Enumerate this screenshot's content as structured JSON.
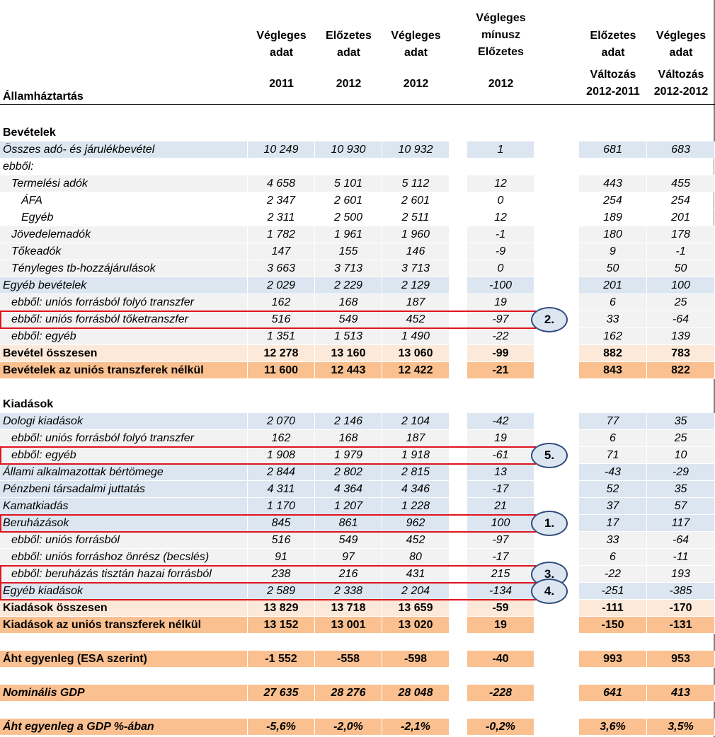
{
  "header": {
    "title": "Államháztartás",
    "cols": [
      {
        "l1": "Végleges",
        "l2": "adat",
        "l3": "",
        "year": "2011"
      },
      {
        "l1": "Előzetes",
        "l2": "adat",
        "l3": "",
        "year": "2012"
      },
      {
        "l1": "Végleges",
        "l2": "adat",
        "l3": "",
        "year": "2012"
      },
      {
        "l1": "Végleges",
        "l2": "mínusz",
        "l3": "Előzetes",
        "year": "2012"
      },
      {
        "l1": "Előzetes",
        "l2": "adat",
        "l3": "Változás",
        "year": "2012-2011"
      },
      {
        "l1": "Végleges",
        "l2": "adat",
        "l3": "Változás",
        "year": "2012-2012"
      }
    ]
  },
  "rows": [
    {
      "label": "Bevételek",
      "style": "sec",
      "v": []
    },
    {
      "label": "Összes adó- és járulékbevétel",
      "style": "blue it",
      "v": [
        "10 249",
        "10 930",
        "10 932",
        "1",
        "681",
        "683"
      ]
    },
    {
      "label": "ebből:",
      "style": "white it",
      "v": [
        "",
        "",
        "",
        "",
        "",
        ""
      ]
    },
    {
      "label": "Termelési adók",
      "style": "gray it ind1",
      "v": [
        "4 658",
        "5 101",
        "5 112",
        "12",
        "443",
        "455"
      ]
    },
    {
      "label": "ÁFA",
      "style": "white ind2",
      "v": [
        "2 347",
        "2 601",
        "2 601",
        "0",
        "254",
        "254"
      ]
    },
    {
      "label": "Egyéb",
      "style": "white ind2",
      "v": [
        "2 311",
        "2 500",
        "2 511",
        "12",
        "189",
        "201"
      ]
    },
    {
      "label": "Jövedelemadók",
      "style": "gray it ind1",
      "v": [
        "1 782",
        "1 961",
        "1 960",
        "-1",
        "180",
        "178"
      ]
    },
    {
      "label": "Tőkeadók",
      "style": "gray it ind1",
      "v": [
        "147",
        "155",
        "146",
        "-9",
        "9",
        "-1"
      ]
    },
    {
      "label": "Tényleges tb-hozzájárulások",
      "style": "gray it ind1",
      "v": [
        "3 663",
        "3 713",
        "3 713",
        "0",
        "50",
        "50"
      ]
    },
    {
      "label": "Egyéb bevételek",
      "style": "blue it",
      "v": [
        "2 029",
        "2 229",
        "2 129",
        "-100",
        "201",
        "100"
      ]
    },
    {
      "label": "ebből: uniós forrásból folyó transzfer",
      "style": "gray it ind1",
      "v": [
        "162",
        "168",
        "187",
        "19",
        "6",
        "25"
      ]
    },
    {
      "label": "ebből: uniós forrásból tőketranszfer",
      "style": "gray it ind1",
      "v": [
        "516",
        "549",
        "452",
        "-97",
        "33",
        "-64"
      ]
    },
    {
      "label": "ebből: egyéb",
      "style": "gray it ind1",
      "v": [
        "1 351",
        "1 513",
        "1 490",
        "-22",
        "162",
        "139"
      ]
    },
    {
      "label": "Bevétel összesen",
      "style": "pink bd",
      "v": [
        "12 278",
        "13 160",
        "13 060",
        "-99",
        "882",
        "783"
      ]
    },
    {
      "label": "Bevételek az uniós transzferek nélkül",
      "style": "orange bd",
      "v": [
        "11 600",
        "12 443",
        "12 422",
        "-21",
        "843",
        "822"
      ]
    },
    {
      "label": "",
      "style": "white",
      "v": []
    },
    {
      "label": "Kiadások",
      "style": "sec",
      "v": []
    },
    {
      "label": "Dologi kiadások",
      "style": "blue it",
      "v": [
        "2 070",
        "2 146",
        "2 104",
        "-42",
        "77",
        "35"
      ]
    },
    {
      "label": "ebből: uniós forrásból folyó transzfer",
      "style": "gray it ind1",
      "v": [
        "162",
        "168",
        "187",
        "19",
        "6",
        "25"
      ]
    },
    {
      "label": "ebből: egyéb",
      "style": "gray it ind1",
      "v": [
        "1 908",
        "1 979",
        "1 918",
        "-61",
        "71",
        "10"
      ]
    },
    {
      "label": "Állami alkalmazottak bértömege",
      "style": "blue it",
      "v": [
        "2 844",
        "2 802",
        "2 815",
        "13",
        "-43",
        "-29"
      ]
    },
    {
      "label": "Pénzbeni társadalmi juttatás",
      "style": "blue it",
      "v": [
        "4 311",
        "4 364",
        "4 346",
        "-17",
        "52",
        "35"
      ]
    },
    {
      "label": "Kamatkiadás",
      "style": "blue it",
      "v": [
        "1 170",
        "1 207",
        "1 228",
        "21",
        "37",
        "57"
      ]
    },
    {
      "label": "Beruházások",
      "style": "blue it",
      "v": [
        "845",
        "861",
        "962",
        "100",
        "17",
        "117"
      ]
    },
    {
      "label": "ebből: uniós forrásból",
      "style": "gray it ind1",
      "v": [
        "516",
        "549",
        "452",
        "-97",
        "33",
        "-64"
      ]
    },
    {
      "label": "ebből: uniós forráshoz önrész (becslés)",
      "style": "gray it ind1",
      "v": [
        "91",
        "97",
        "80",
        "-17",
        "6",
        "-11"
      ]
    },
    {
      "label": "ebből: beruházás tisztán hazai forrásból",
      "style": "gray it ind1",
      "v": [
        "238",
        "216",
        "431",
        "215",
        "-22",
        "193"
      ]
    },
    {
      "label": "Egyéb kiadások",
      "style": "blue it",
      "v": [
        "2 589",
        "2 338",
        "2 204",
        "-134",
        "-251",
        "-385"
      ]
    },
    {
      "label": "Kiadások összesen",
      "style": "pink bd",
      "v": [
        "13 829",
        "13 718",
        "13 659",
        "-59",
        "-111",
        "-170"
      ]
    },
    {
      "label": "Kiadások az uniós transzferek nélkül",
      "style": "orange bd",
      "v": [
        "13 152",
        "13 001",
        "13 020",
        "19",
        "-150",
        "-131"
      ]
    },
    {
      "label": "",
      "style": "white",
      "v": []
    },
    {
      "label": "Áht egyenleg (ESA szerint)",
      "style": "orange bd",
      "v": [
        "-1 552",
        "-558",
        "-598",
        "-40",
        "993",
        "953"
      ]
    },
    {
      "label": "",
      "style": "white",
      "v": []
    },
    {
      "label": "Nominális GDP",
      "style": "orange bd it",
      "v": [
        "27 635",
        "28 276",
        "28 048",
        "-228",
        "641",
        "413"
      ]
    },
    {
      "label": "",
      "style": "white",
      "v": []
    },
    {
      "label": "Áht egyenleg a GDP %-ában",
      "style": "orange bd it",
      "v": [
        "-5,6%",
        "-2,0%",
        "-2,1%",
        "-0,2%",
        "3,6%",
        "3,5%"
      ]
    }
  ],
  "annotations": [
    {
      "label": "1.",
      "row": 23
    },
    {
      "label": "2.",
      "row": 11
    },
    {
      "label": "3.",
      "row": 26
    },
    {
      "label": "4.",
      "row": 27
    },
    {
      "label": "5.",
      "row": 19
    }
  ],
  "colors": {
    "blue": "#dce6f1",
    "gray": "#f2f2f2",
    "pink": "#fde9d9",
    "orange": "#fac090",
    "highlight": "#e0141e"
  }
}
